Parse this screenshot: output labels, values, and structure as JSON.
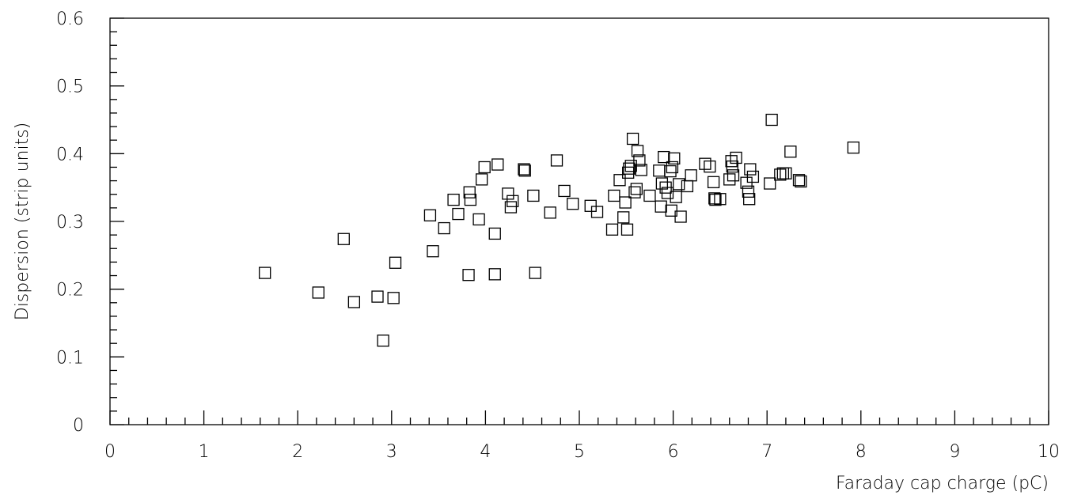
{
  "chart_data": {
    "type": "scatter",
    "title": "",
    "xlabel": "Faraday cap charge (pC)",
    "ylabel": "Dispersion (strip units)",
    "xlim": [
      0,
      10
    ],
    "ylim": [
      0,
      0.6
    ],
    "x_ticks": [
      "0",
      "1",
      "2",
      "3",
      "4",
      "5",
      "6",
      "7",
      "8",
      "9",
      "10"
    ],
    "y_ticks": [
      "0",
      "0.1",
      "0.2",
      "0.3",
      "0.4",
      "0.5",
      "0.6"
    ],
    "marker": "open-square",
    "grid": false,
    "points": [
      {
        "x": 1.65,
        "y": 0.224
      },
      {
        "x": 2.22,
        "y": 0.195
      },
      {
        "x": 2.49,
        "y": 0.274
      },
      {
        "x": 2.6,
        "y": 0.181
      },
      {
        "x": 2.85,
        "y": 0.189
      },
      {
        "x": 2.91,
        "y": 0.124
      },
      {
        "x": 3.02,
        "y": 0.187
      },
      {
        "x": 3.04,
        "y": 0.239
      },
      {
        "x": 3.41,
        "y": 0.309
      },
      {
        "x": 3.44,
        "y": 0.256
      },
      {
        "x": 3.56,
        "y": 0.29
      },
      {
        "x": 3.66,
        "y": 0.332
      },
      {
        "x": 3.71,
        "y": 0.311
      },
      {
        "x": 3.82,
        "y": 0.221
      },
      {
        "x": 3.83,
        "y": 0.343
      },
      {
        "x": 3.84,
        "y": 0.332
      },
      {
        "x": 3.93,
        "y": 0.303
      },
      {
        "x": 3.96,
        "y": 0.362
      },
      {
        "x": 3.99,
        "y": 0.38
      },
      {
        "x": 4.1,
        "y": 0.282
      },
      {
        "x": 4.1,
        "y": 0.222
      },
      {
        "x": 4.13,
        "y": 0.384
      },
      {
        "x": 4.24,
        "y": 0.341
      },
      {
        "x": 4.27,
        "y": 0.321
      },
      {
        "x": 4.29,
        "y": 0.33
      },
      {
        "x": 4.41,
        "y": 0.377
      },
      {
        "x": 4.42,
        "y": 0.375
      },
      {
        "x": 4.51,
        "y": 0.338
      },
      {
        "x": 4.53,
        "y": 0.224
      },
      {
        "x": 4.69,
        "y": 0.313
      },
      {
        "x": 4.76,
        "y": 0.39
      },
      {
        "x": 4.84,
        "y": 0.345
      },
      {
        "x": 4.93,
        "y": 0.326
      },
      {
        "x": 5.12,
        "y": 0.323
      },
      {
        "x": 5.19,
        "y": 0.314
      },
      {
        "x": 5.35,
        "y": 0.288
      },
      {
        "x": 5.37,
        "y": 0.338
      },
      {
        "x": 5.43,
        "y": 0.361
      },
      {
        "x": 5.47,
        "y": 0.306
      },
      {
        "x": 5.49,
        "y": 0.328
      },
      {
        "x": 5.51,
        "y": 0.288
      },
      {
        "x": 5.52,
        "y": 0.372
      },
      {
        "x": 5.53,
        "y": 0.378
      },
      {
        "x": 5.55,
        "y": 0.382
      },
      {
        "x": 5.57,
        "y": 0.422
      },
      {
        "x": 5.59,
        "y": 0.343
      },
      {
        "x": 5.61,
        "y": 0.348
      },
      {
        "x": 5.62,
        "y": 0.404
      },
      {
        "x": 5.64,
        "y": 0.39
      },
      {
        "x": 5.66,
        "y": 0.376
      },
      {
        "x": 5.75,
        "y": 0.338
      },
      {
        "x": 5.85,
        "y": 0.375
      },
      {
        "x": 5.87,
        "y": 0.322
      },
      {
        "x": 5.88,
        "y": 0.356
      },
      {
        "x": 5.9,
        "y": 0.395
      },
      {
        "x": 5.92,
        "y": 0.35
      },
      {
        "x": 5.94,
        "y": 0.342
      },
      {
        "x": 5.97,
        "y": 0.374
      },
      {
        "x": 5.98,
        "y": 0.316
      },
      {
        "x": 5.99,
        "y": 0.38
      },
      {
        "x": 6.01,
        "y": 0.393
      },
      {
        "x": 6.03,
        "y": 0.336
      },
      {
        "x": 6.06,
        "y": 0.355
      },
      {
        "x": 6.08,
        "y": 0.307
      },
      {
        "x": 6.15,
        "y": 0.352
      },
      {
        "x": 6.19,
        "y": 0.368
      },
      {
        "x": 6.34,
        "y": 0.385
      },
      {
        "x": 6.39,
        "y": 0.381
      },
      {
        "x": 6.43,
        "y": 0.358
      },
      {
        "x": 6.44,
        "y": 0.334
      },
      {
        "x": 6.45,
        "y": 0.332
      },
      {
        "x": 6.5,
        "y": 0.333
      },
      {
        "x": 6.6,
        "y": 0.362
      },
      {
        "x": 6.62,
        "y": 0.389
      },
      {
        "x": 6.63,
        "y": 0.381
      },
      {
        "x": 6.64,
        "y": 0.368
      },
      {
        "x": 6.67,
        "y": 0.394
      },
      {
        "x": 6.78,
        "y": 0.357
      },
      {
        "x": 6.8,
        "y": 0.344
      },
      {
        "x": 6.81,
        "y": 0.333
      },
      {
        "x": 6.82,
        "y": 0.377
      },
      {
        "x": 6.85,
        "y": 0.366
      },
      {
        "x": 7.03,
        "y": 0.356
      },
      {
        "x": 7.05,
        "y": 0.45
      },
      {
        "x": 7.14,
        "y": 0.369
      },
      {
        "x": 7.17,
        "y": 0.371
      },
      {
        "x": 7.2,
        "y": 0.371
      },
      {
        "x": 7.25,
        "y": 0.403
      },
      {
        "x": 7.34,
        "y": 0.361
      },
      {
        "x": 7.36,
        "y": 0.359
      },
      {
        "x": 7.92,
        "y": 0.409
      }
    ]
  }
}
